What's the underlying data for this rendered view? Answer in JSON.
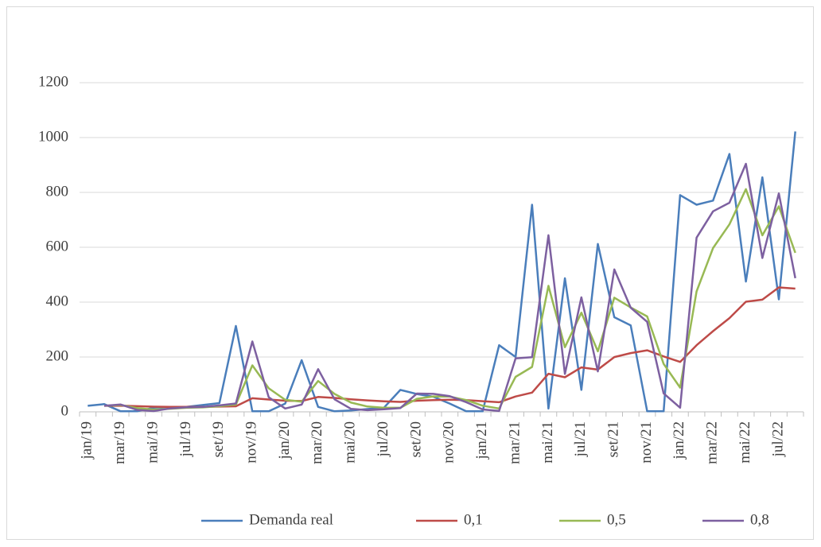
{
  "chart_data": {
    "type": "line",
    "categories": [
      "jan/19",
      null,
      "mar/19",
      null,
      "mai/19",
      null,
      "jul/19",
      null,
      "set/19",
      null,
      "nov/19",
      null,
      "jan/20",
      null,
      "mar/20",
      null,
      "mai/20",
      null,
      "jul/20",
      null,
      "set/20",
      null,
      "nov/20",
      null,
      "jan/21",
      null,
      "mar/21",
      null,
      "mai/21",
      null,
      "jul/21",
      null,
      "set/21",
      null,
      "nov/21",
      null,
      "jan/22",
      null,
      "mar/22",
      null,
      "mai/22",
      null,
      "jul/22",
      null
    ],
    "series": [
      {
        "name": "Demanda real",
        "color": "#4a7ebb",
        "values": [
          22,
          28,
          2,
          2,
          15,
          18,
          18,
          25,
          32,
          313,
          2,
          2,
          30,
          188,
          18,
          2,
          5,
          10,
          15,
          80,
          65,
          55,
          30,
          2,
          2,
          243,
          200,
          755,
          12,
          487,
          80,
          612,
          345,
          315,
          2,
          2,
          790,
          755,
          770,
          940,
          475,
          855,
          410,
          1022
        ]
      },
      {
        "name": "0,1",
        "color": "#be4b48",
        "values": [
          null,
          22,
          22.6,
          20.5,
          18.7,
          18.3,
          18.3,
          18.3,
          19,
          20.3,
          49.6,
          44.8,
          40.5,
          39.4,
          54.3,
          50.7,
          45.8,
          41.7,
          38.5,
          36.2,
          40.6,
          43,
          44.2,
          42.8,
          38.7,
          35,
          55.8,
          70.2,
          138.7,
          126,
          162.1,
          153.9,
          199.7,
          214.2,
          224.3,
          202.1,
          182.1,
          242.9,
          294.1,
          341.7,
          401.5,
          408.9,
          453.5,
          449.2
        ]
      },
      {
        "name": "0,5",
        "color": "#98b954",
        "values": [
          null,
          22,
          25,
          13.5,
          7.8,
          11.4,
          14.7,
          16.3,
          20.7,
          26.3,
          169.7,
          85.8,
          43.9,
          37,
          112.5,
          65.2,
          33.6,
          19.3,
          14.7,
          14.8,
          47.4,
          56.2,
          55.6,
          42.8,
          22.4,
          12.2,
          127.6,
          163.8,
          459.4,
          235.7,
          361.4,
          220.7,
          416.3,
          380.7,
          347.8,
          174.9,
          88.5,
          439.2,
          597.1,
          683.6,
          811.8,
          643.4,
          749.2,
          579.6
        ]
      },
      {
        "name": "0,8",
        "color": "#7d60a0",
        "values": [
          null,
          22,
          26.8,
          7,
          3,
          12.6,
          16.9,
          17.8,
          23.6,
          30.3,
          256.5,
          52.9,
          12.2,
          26.4,
          155.7,
          45.5,
          10.7,
          6.1,
          9.2,
          13.8,
          66.8,
          65.4,
          57.1,
          35.4,
          8.7,
          3.3,
          195.1,
          199,
          643.8,
          138.4,
          417.3,
          147.5,
          519.1,
          379.8,
          328,
          67.2,
          15,
          635,
          731,
          762.2,
          904.4,
          560.9,
          796.2,
          487.2
        ]
      }
    ],
    "ylim": [
      0,
      1200
    ],
    "yticks": [
      0,
      200,
      400,
      600,
      800,
      1000,
      1200
    ],
    "grid": true,
    "legend": "bottom"
  }
}
